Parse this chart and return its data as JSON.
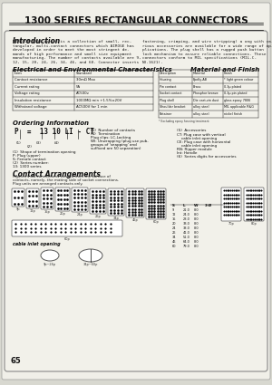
{
  "title": "1300 SERIES RECTANGULAR CONNECTORS",
  "bg_color": "#f5f5f0",
  "page_bg": "#e8e8e0",
  "title_color": "#111111",
  "section_title_color": "#111111",
  "body_text_color": "#222222",
  "intro_title": "Introduction",
  "intro_text": "MINICOM 1300 series is a collection of small, rec-\ntangular, multi-contact connectors which AIROGE has\ndeveloped in order to meet the most stringent de-\nmands of high performance and small size equipment\nmanufacturing. The number of contacts available are 9,\n12, 15, 20, 24, 26, 34, 46, and 60. Connector inserts",
  "intro_text2": "fastening, crimping, and wire stripping) a ong with va-\nrious accessories are available for a wide range of ap-\nplications. The plug shell has a rugged push button\nlock mechanism to assure reliable connections. These\nconnectors conform to MIL specifications (MIL-C-\nNO.1621).",
  "elec_title": "Electrical and Environmental Characteristics",
  "mat_title": "Material and Finish",
  "order_title": "Ordering Information",
  "contact_title": "Contact Arrangements",
  "contact_text": "Figures s ow connections viewed from the surface of\ncontacts, namely, the mating side of socket connections.\nPlug units are arranged contacts only.",
  "cable_label": "cable inlet opening",
  "page_num": "65"
}
